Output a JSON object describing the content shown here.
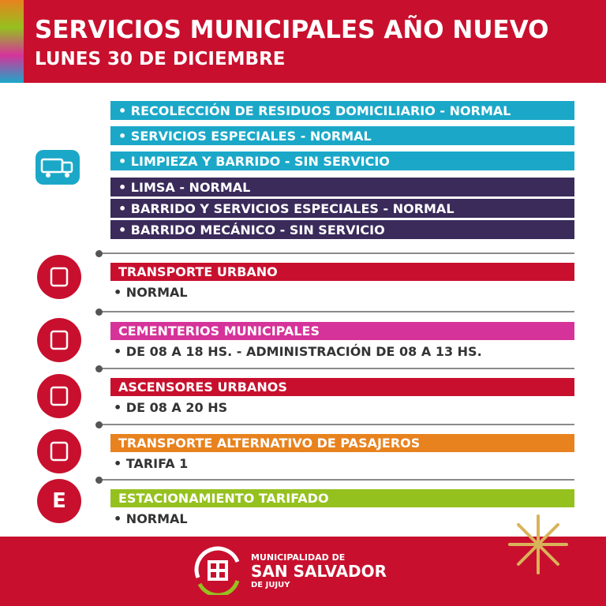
{
  "header": {
    "title": "SERVICIOS MUNICIPALES AÑO NUEVO",
    "subtitle": "LUNES 30 DE DICIEMBRE"
  },
  "waste": [
    {
      "text": "• RECOLECCIÓN DE RESIDUOS DOMICILIARIO - NORMAL",
      "color": "#1ba8c8"
    },
    {
      "text": "• SERVICIOS ESPECIALES - NORMAL",
      "color": "#1ba8c8"
    },
    {
      "text": "• LIMPIEZA Y BARRIDO - SIN SERVICIO",
      "color": "#1ba8c8"
    },
    {
      "text": "• LIMSA - NORMAL",
      "color": "#3a2b5a"
    },
    {
      "text": "• BARRIDO Y SERVICIOS ESPECIALES - NORMAL",
      "color": "#3a2b5a"
    },
    {
      "text": "• BARRIDO MECÁNICO - SIN SERVICIO",
      "color": "#3a2b5a"
    }
  ],
  "sections": [
    {
      "title": "TRANSPORTE  URBANO",
      "item": "• NORMAL",
      "color": "#c8102e"
    },
    {
      "title": "CEMENTERIOS MUNICIPALES",
      "item": "• DE 08 A 18 HS. - ADMINISTRACIÓN DE 08 A 13 HS.",
      "color": "#d6339a"
    },
    {
      "title": "ASCENSORES URBANOS",
      "item": "• DE 08 A 20 HS",
      "color": "#c8102e"
    },
    {
      "title": "TRANSPORTE ALTERNATIVO DE PASAJEROS",
      "item": "• TARIFA 1",
      "color": "#e8821e"
    },
    {
      "title": "ESTACIONAMIENTO TARIFADO",
      "item": "• NORMAL",
      "color": "#95c11f",
      "icon": "E"
    }
  ],
  "footer": {
    "line1": "MUNICIPALIDAD DE",
    "line2": "SAN SALVADOR",
    "line3": "DE JUJUY"
  }
}
